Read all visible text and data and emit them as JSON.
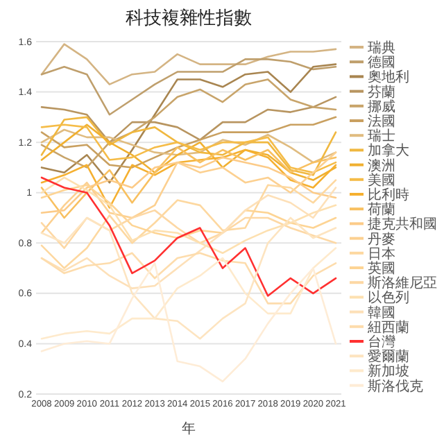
{
  "chart_data": {
    "type": "line",
    "title": "科技複雜性指數",
    "xlabel": "年",
    "categories": [
      "2008",
      "2009",
      "2010",
      "2011",
      "2012",
      "2013",
      "2014",
      "2015",
      "2016",
      "2017",
      "2018",
      "2019",
      "2020",
      "2021"
    ],
    "ylim": [
      0.2,
      1.6
    ],
    "yticks": [
      0.2,
      0.4,
      0.6,
      0.8,
      1,
      1.2,
      1.4,
      1.6
    ],
    "grid": "y",
    "legend": "right",
    "marker": "none",
    "line_style": "solid",
    "series": [
      {
        "name": "瑞典",
        "color": "#d4b483",
        "values": [
          1.47,
          1.59,
          1.53,
          1.43,
          1.47,
          1.48,
          1.55,
          1.51,
          1.51,
          1.51,
          1.54,
          1.56,
          1.56,
          1.57
        ]
      },
      {
        "name": "德國",
        "color": "#bf9f6c",
        "values": [
          1.47,
          1.5,
          1.47,
          1.31,
          1.37,
          1.43,
          1.48,
          1.48,
          1.48,
          1.53,
          1.53,
          1.52,
          1.49,
          1.5
        ]
      },
      {
        "name": "奧地利",
        "color": "#a88550",
        "values": [
          1.1,
          1.08,
          1.15,
          1.04,
          1.17,
          1.31,
          1.45,
          1.45,
          1.42,
          1.47,
          1.48,
          1.4,
          1.5,
          1.51
        ]
      },
      {
        "name": "芬蘭",
        "color": "#b89560",
        "values": [
          1.34,
          1.33,
          1.31,
          1.2,
          1.28,
          1.28,
          1.26,
          1.21,
          1.28,
          1.28,
          1.33,
          1.32,
          1.34,
          1.38
        ]
      },
      {
        "name": "挪威",
        "color": "#c8a46a",
        "values": [
          1.19,
          1.14,
          1.1,
          1.2,
          1.24,
          1.3,
          1.38,
          1.41,
          1.36,
          1.43,
          1.45,
          1.37,
          1.34,
          1.33
        ]
      },
      {
        "name": "法國",
        "color": "#c9a060",
        "values": [
          1.24,
          1.18,
          1.19,
          1.11,
          1.1,
          1.14,
          1.18,
          1.21,
          1.24,
          1.24,
          1.24,
          1.27,
          1.27,
          1.3
        ]
      },
      {
        "name": "瑞士",
        "color": "#e0bc80",
        "values": [
          1.2,
          1.25,
          1.22,
          1.22,
          1.19,
          1.16,
          1.15,
          1.16,
          1.21,
          1.19,
          1.23,
          1.18,
          1.12,
          1.16
        ]
      },
      {
        "name": "加拿大",
        "color": "#f0b840",
        "values": [
          1.15,
          1.29,
          1.3,
          1.19,
          1.24,
          1.26,
          1.2,
          1.16,
          1.15,
          1.2,
          1.2,
          1.09,
          1.07,
          1.24
        ]
      },
      {
        "name": "澳洲",
        "color": "#f0b030",
        "values": [
          1.13,
          1.2,
          1.27,
          1.2,
          1.15,
          1.08,
          1.15,
          1.2,
          1.1,
          1.17,
          1.15,
          1.08,
          1.05,
          1.1
        ]
      },
      {
        "name": "美國",
        "color": "#f5bc48",
        "values": [
          1.26,
          1.27,
          1.26,
          1.13,
          1.14,
          1.18,
          1.2,
          1.17,
          1.2,
          1.2,
          1.22,
          1.1,
          1.08,
          1.12
        ]
      },
      {
        "name": "比利時",
        "color": "#f5b030",
        "values": [
          1.04,
          1.07,
          1.11,
          0.94,
          1.11,
          1.07,
          1.12,
          1.13,
          1.14,
          1.17,
          1.14,
          1.05,
          1.02,
          1.11
        ]
      },
      {
        "name": "荷蘭",
        "color": "#f8c060",
        "values": [
          1.02,
          0.9,
          1,
          1.09,
          0.96,
          1.08,
          1.18,
          1.12,
          1.17,
          1.13,
          1.17,
          1.08,
          1.12,
          1.14
        ]
      },
      {
        "name": "捷克共和國",
        "color": "#fccb88",
        "values": [
          0.92,
          0.93,
          1.02,
          1.05,
          1.02,
          1.1,
          1.12,
          1.1,
          1.14,
          1.12,
          1.1,
          1.06,
          1,
          0.98
        ]
      },
      {
        "name": "丹麥",
        "color": "#fcd090",
        "values": [
          0.84,
          0.95,
          1.04,
          0.92,
          0.9,
          0.95,
          1.12,
          1.08,
          1.1,
          1.04,
          1.06,
          1,
          1.08,
          1.16
        ]
      },
      {
        "name": "日本",
        "color": "#fdd8a0",
        "values": [
          0.79,
          0.7,
          0.78,
          0.91,
          0.8,
          0.88,
          0.97,
          0.95,
          0.85,
          0.86,
          1.03,
          1.02,
          0.96,
          1.05
        ]
      },
      {
        "name": "英國",
        "color": "#fdd494",
        "values": [
          0.98,
          1.01,
          1.03,
          0.96,
          0.87,
          0.84,
          0.82,
          0.85,
          0.84,
          0.93,
          0.92,
          0.88,
          0.86,
          0.9
        ]
      },
      {
        "name": "斯洛維尼亞",
        "color": "#fdd8a4",
        "values": [
          0.88,
          0.78,
          0.9,
          0.85,
          0.9,
          0.93,
          0.86,
          0.8,
          0.84,
          0.9,
          0.9,
          0.86,
          0.83,
          0.8
        ]
      },
      {
        "name": "以色列",
        "color": "#fde0b0",
        "values": [
          1,
          1.06,
          1.01,
          0.95,
          0.81,
          0.85,
          0.84,
          0.8,
          0.76,
          0.81,
          0.85,
          0.88,
          0.92,
          0.95
        ]
      },
      {
        "name": "韓國",
        "color": "#fde0b8",
        "values": [
          0.74,
          0.69,
          0.74,
          0.67,
          0.62,
          0.63,
          0.7,
          0.77,
          0.84,
          0.93,
          0.99,
          0.96,
          0.9,
          1.02
        ]
      },
      {
        "name": "紐西蘭",
        "color": "#fddcac",
        "values": [
          0.74,
          0.68,
          0.71,
          0.72,
          0.76,
          0.66,
          0.74,
          0.76,
          0.73,
          0.72,
          0.56,
          0.56,
          0.67,
          0.72
        ]
      },
      {
        "name": "台灣",
        "color": "#ff3030",
        "values": [
          1.06,
          1.02,
          1,
          0.87,
          0.68,
          0.73,
          0.82,
          0.86,
          0.7,
          0.78,
          0.59,
          0.66,
          0.6,
          0.66
        ]
      },
      {
        "name": "愛爾蘭",
        "color": "#fde4c0",
        "values": [
          0.84,
          0.8,
          0.9,
          0.85,
          0.6,
          0.5,
          0.49,
          0.42,
          0.5,
          0.56,
          0.8,
          0.9,
          0.82,
          0.86
        ]
      },
      {
        "name": "新加坡",
        "color": "#feeacc",
        "values": [
          0.42,
          0.44,
          0.45,
          0.44,
          0.5,
          0.5,
          0.62,
          0.67,
          0.74,
          0.6,
          0.52,
          0.52,
          0.7,
          0.78
        ]
      },
      {
        "name": "斯洛伐克",
        "color": "#feecd6",
        "values": [
          0.37,
          0.4,
          0.41,
          0.4,
          0.58,
          0.72,
          0.33,
          0.31,
          0.25,
          0.34,
          0.48,
          0.6,
          0.7,
          0.4
        ]
      }
    ]
  }
}
